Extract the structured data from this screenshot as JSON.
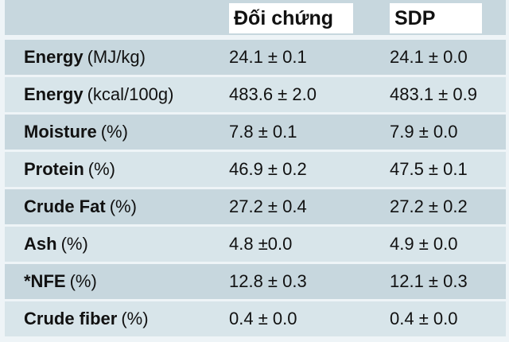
{
  "header": {
    "col1": "Đối chứng",
    "col2": "SDP"
  },
  "rows": [
    {
      "label_bold": "Energy",
      "label_unit": "(MJ/kg)",
      "col1": "24.1 ± 0.1",
      "col2": "24.1 ± 0.0"
    },
    {
      "label_bold": "Energy",
      "label_unit": "(kcal/100g)",
      "col1": "483.6 ± 2.0",
      "col2": "483.1 ± 0.9"
    },
    {
      "label_bold": "Moisture",
      "label_unit": "(%)",
      "col1": "7.8 ± 0.1",
      "col2": "7.9 ± 0.0"
    },
    {
      "label_bold": "Protein",
      "label_unit": "(%)",
      "col1": "46.9 ± 0.2",
      "col2": "47.5 ± 0.1"
    },
    {
      "label_bold": "Crude Fat",
      "label_unit": "(%)",
      "col1": "27.2 ± 0.4",
      "col2": "27.2 ± 0.2"
    },
    {
      "label_bold": "Ash",
      "label_unit": "(%)",
      "col1": "4.8 ±0.0",
      "col2": "4.9 ± 0.0"
    },
    {
      "label_bold": "*NFE",
      "label_unit": "(%)",
      "col1": "12.8 ± 0.3",
      "col2": "12.1 ± 0.3"
    },
    {
      "label_bold": "Crude fiber",
      "label_unit": "(%)",
      "col1": "0.4 ± 0.0",
      "col2": "0.4 ± 0.0"
    }
  ]
}
